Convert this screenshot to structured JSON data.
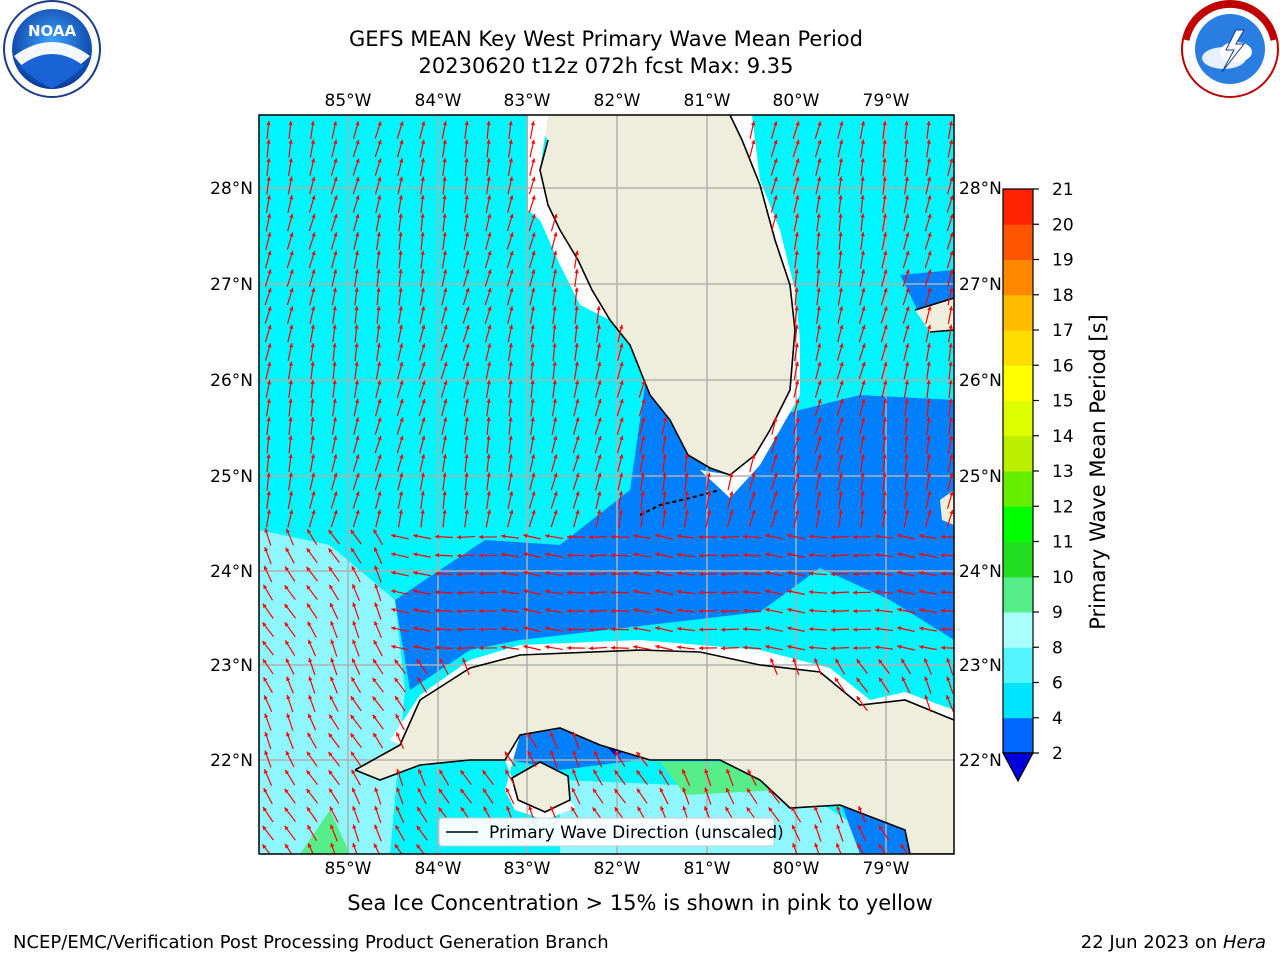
{
  "title_line1": "GEFS MEAN Key West Primary Wave Mean Period",
  "title_line2": "20230620 t12z 072h fcst   Max: 9.35",
  "caption": "Sea Ice Concentration > 15% is shown in pink to yellow",
  "footer_left": "NCEP/EMC/Verification Post Processing Product Generation Branch",
  "footer_date": "22 Jun 2023 on ",
  "footer_host": "Hera",
  "legend_label": "Primary Wave Direction (unscaled)",
  "colorbar": {
    "label": "Primary Wave Mean Period [s]",
    "ticks": [
      "2",
      "4",
      "6",
      "8",
      "9",
      "10",
      "11",
      "12",
      "13",
      "14",
      "15",
      "16",
      "17",
      "18",
      "19",
      "20",
      "21"
    ],
    "colors": [
      "#0066ff",
      "#00e5ff",
      "#55f5ff",
      "#aaffff",
      "#55ee88",
      "#22dd22",
      "#00ff00",
      "#66ee00",
      "#bbee00",
      "#ddff00",
      "#ffff00",
      "#ffdd00",
      "#ffbb00",
      "#ff8800",
      "#ff5500",
      "#ff2200",
      "#ff0000"
    ],
    "extend_color": "#0000dd"
  },
  "map": {
    "lon_labels": [
      "85°W",
      "84°W",
      "83°W",
      "82°W",
      "81°W",
      "80°W",
      "79°W"
    ],
    "lat_labels": [
      "28°N",
      "27°N",
      "26°N",
      "25°N",
      "24°N",
      "23°N",
      "22°N"
    ],
    "colors": {
      "ocean_main": "#00f5ff",
      "ocean_light": "#8ff7ff",
      "ocean_dark": "#0080ff",
      "ocean_deep": "#0000cc",
      "ocean_green": "#55ee88",
      "land": "#efeedd",
      "arrow": "#ff0000",
      "grid": "#b0b0b0"
    },
    "logos": [
      "noaa-logo",
      "nws-logo"
    ]
  }
}
